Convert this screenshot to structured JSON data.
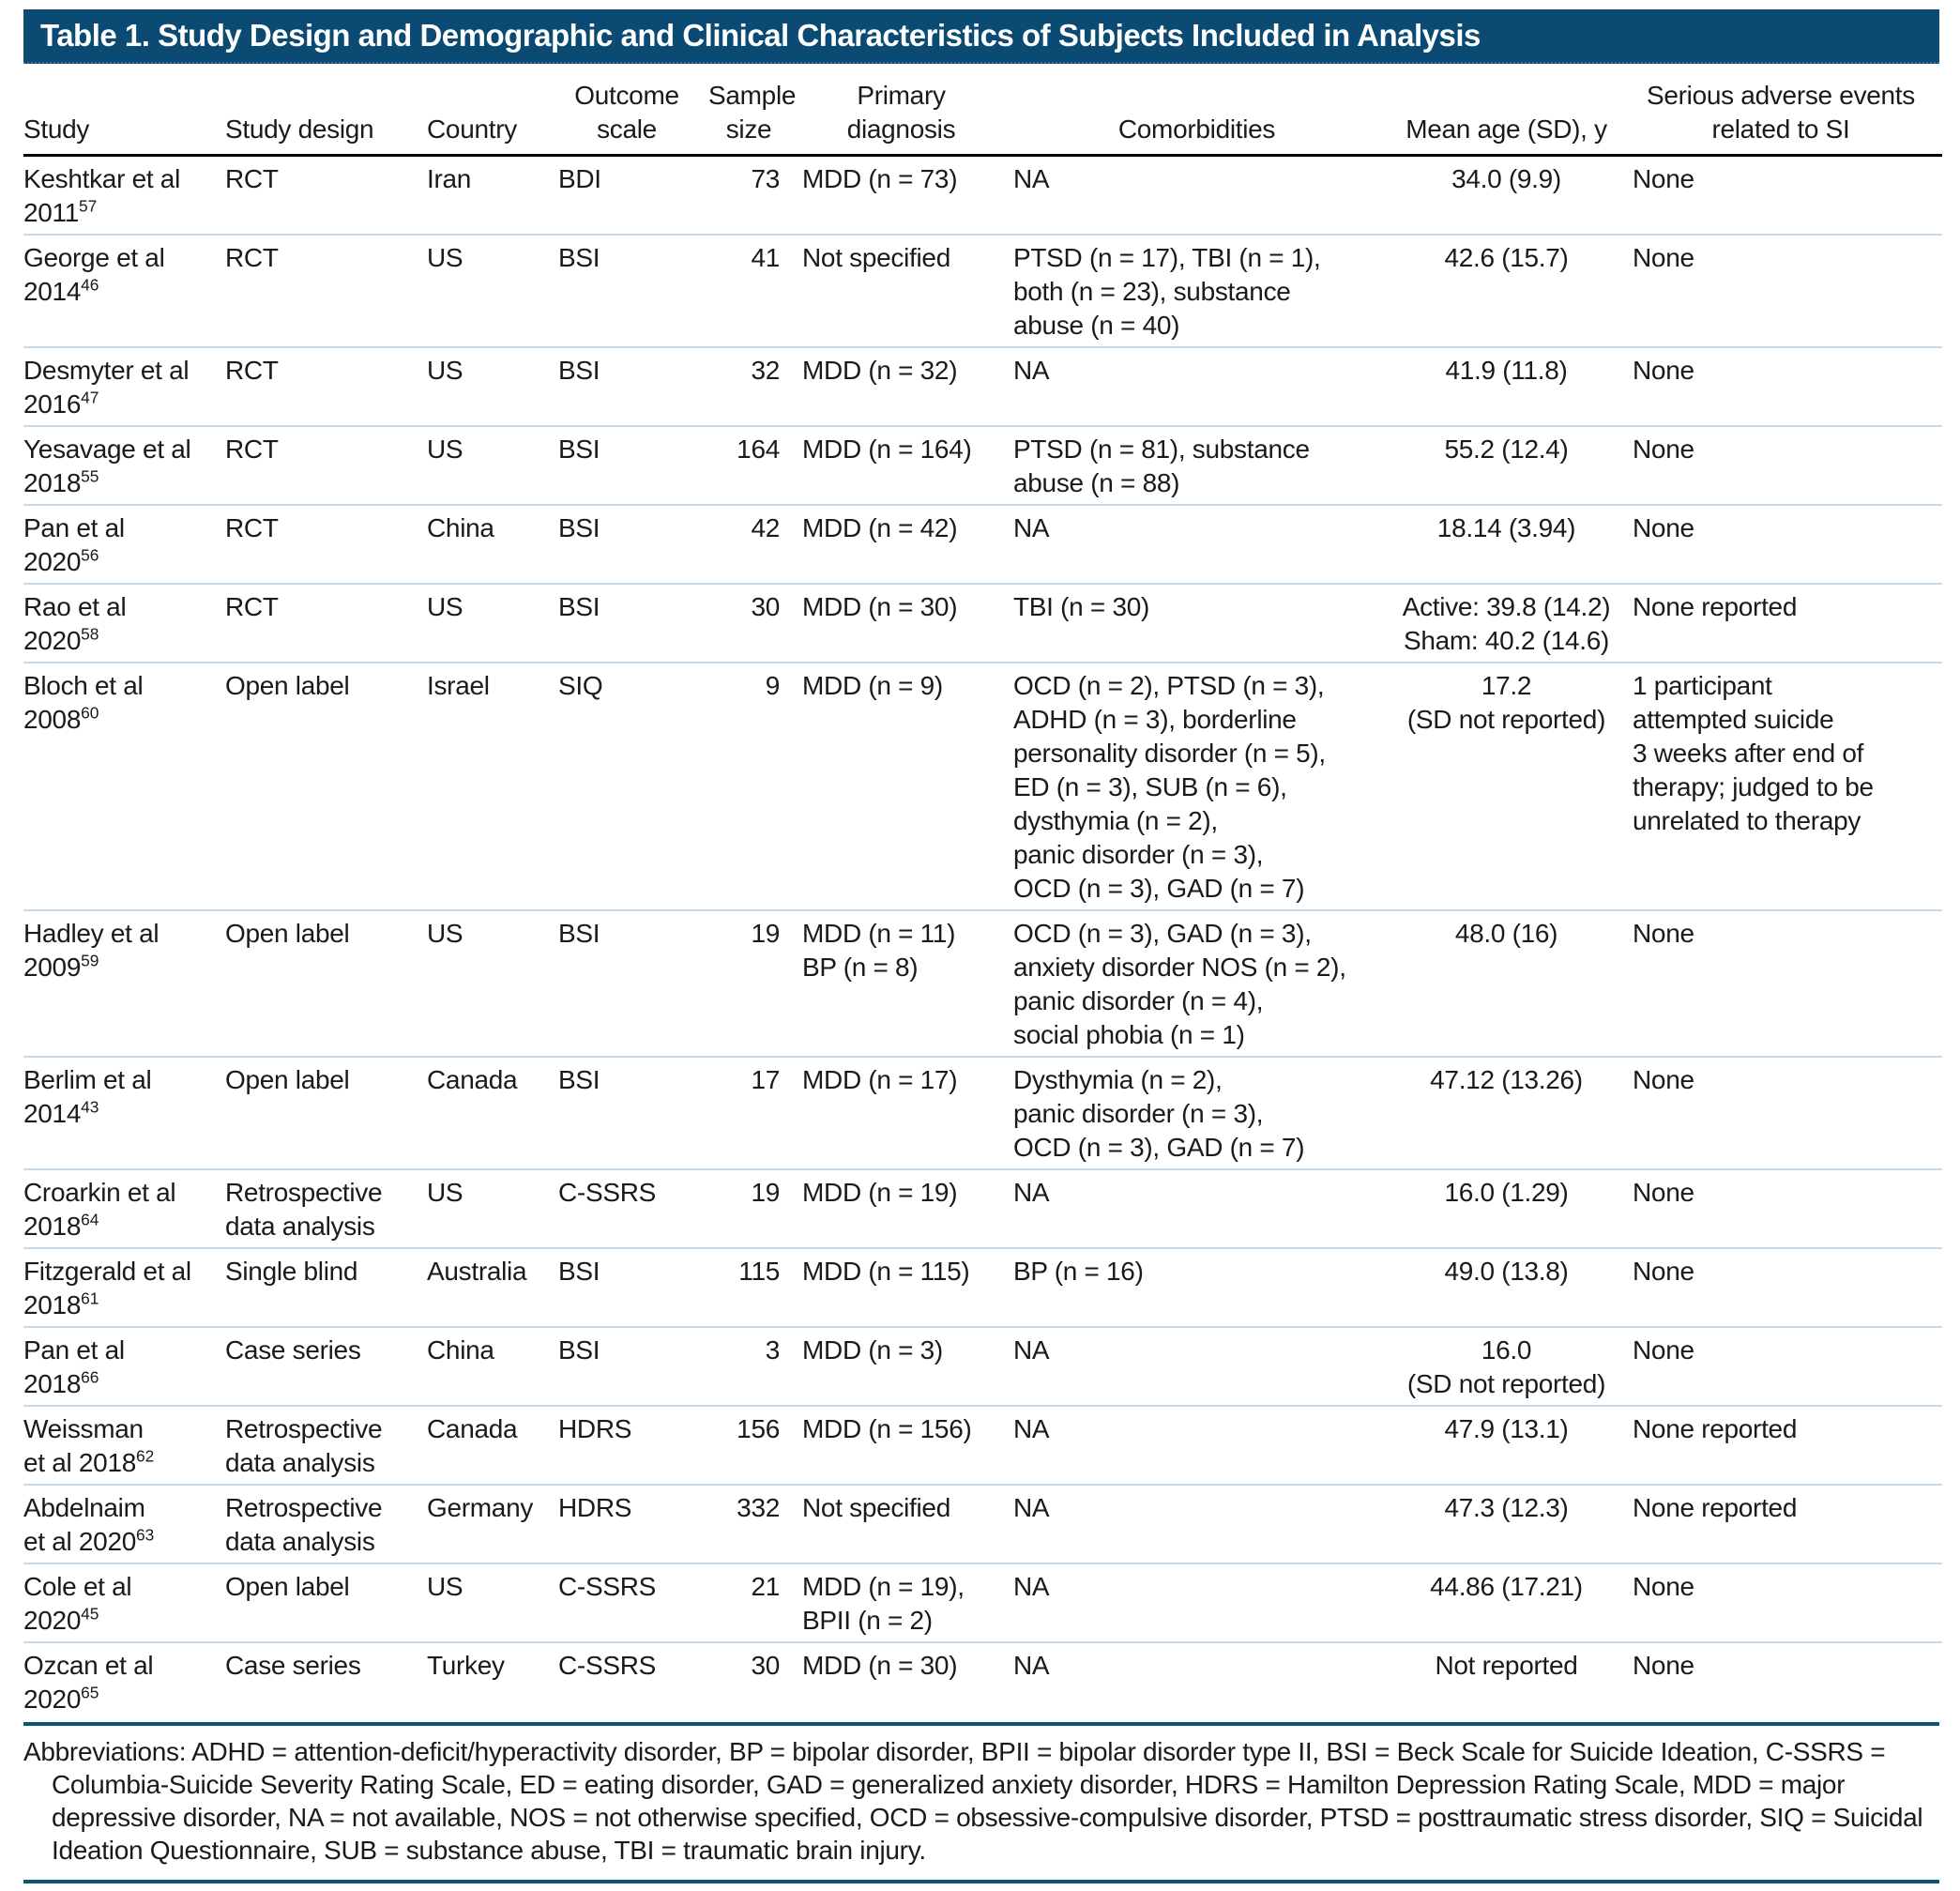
{
  "title": "Table 1. Study Design and Demographic and Clinical Characteristics of Subjects Included in Analysis",
  "colors": {
    "header_bar": "#0b4a72",
    "row_divider": "#c3dcef",
    "heavy_rule": "#0e5574",
    "header_rule": "#000000"
  },
  "columns": [
    "Study",
    "Study design",
    "Country",
    "Outcome scale",
    "Sample size",
    "Primary diagnosis",
    "Comorbidities",
    "Mean age (SD), y",
    "Serious adverse events related to SI"
  ],
  "rows": [
    {
      "study": "Keshtkar et al\n2011",
      "ref": "57",
      "design": "RCT",
      "country": "Iran",
      "scale": "BDI",
      "size": "73",
      "diagnosis": "MDD (n = 73)",
      "comorbidities": "NA",
      "mean_age": "34.0 (9.9)",
      "adverse_events": "None"
    },
    {
      "study": "George et al\n2014",
      "ref": "46",
      "design": "RCT",
      "country": "US",
      "scale": "BSI",
      "size": "41",
      "diagnosis": "Not specified",
      "comorbidities": "PTSD (n = 17), TBI (n = 1),\nboth (n = 23), substance\nabuse (n = 40)",
      "mean_age": "42.6 (15.7)",
      "adverse_events": "None"
    },
    {
      "study": "Desmyter et al\n2016",
      "ref": "47",
      "design": "RCT",
      "country": "US",
      "scale": "BSI",
      "size": "32",
      "diagnosis": "MDD (n = 32)",
      "comorbidities": "NA",
      "mean_age": "41.9 (11.8)",
      "adverse_events": "None"
    },
    {
      "study": "Yesavage et al\n2018",
      "ref": "55",
      "design": "RCT",
      "country": "US",
      "scale": "BSI",
      "size": "164",
      "diagnosis": "MDD (n = 164)",
      "comorbidities": "PTSD (n = 81), substance\nabuse (n = 88)",
      "mean_age": "55.2 (12.4)",
      "adverse_events": "None"
    },
    {
      "study": "Pan et al\n2020",
      "ref": "56",
      "design": "RCT",
      "country": "China",
      "scale": "BSI",
      "size": "42",
      "diagnosis": "MDD (n = 42)",
      "comorbidities": "NA",
      "mean_age": "18.14 (3.94)",
      "adverse_events": "None"
    },
    {
      "study": "Rao et al\n2020",
      "ref": "58",
      "design": "RCT",
      "country": "US",
      "scale": "BSI",
      "size": "30",
      "diagnosis": "MDD (n = 30)",
      "comorbidities": "TBI (n = 30)",
      "mean_age": "Active: 39.8 (14.2)\nSham: 40.2 (14.6)",
      "adverse_events": "None reported"
    },
    {
      "study": "Bloch et al\n2008",
      "ref": "60",
      "design": "Open label",
      "country": "Israel",
      "scale": "SIQ",
      "size": "9",
      "diagnosis": "MDD (n = 9)",
      "comorbidities": "OCD (n = 2), PTSD (n = 3),\nADHD (n = 3), borderline\npersonality disorder (n = 5),\nED (n = 3), SUB (n = 6),\ndysthymia (n = 2),\npanic disorder (n = 3),\nOCD (n = 3), GAD (n = 7)",
      "mean_age": "17.2\n(SD not reported)",
      "adverse_events": "1 participant\nattempted suicide\n3 weeks after end of\ntherapy; judged to be\nunrelated to therapy"
    },
    {
      "study": "Hadley et al\n2009",
      "ref": "59",
      "design": "Open label",
      "country": "US",
      "scale": "BSI",
      "size": "19",
      "diagnosis": "MDD (n = 11)\nBP (n = 8)",
      "comorbidities": "OCD (n = 3), GAD (n = 3),\nanxiety disorder NOS (n = 2),\npanic disorder (n = 4),\nsocial phobia (n = 1)",
      "mean_age": "48.0 (16)",
      "adverse_events": "None"
    },
    {
      "study": "Berlim et al\n2014",
      "ref": "43",
      "design": "Open label",
      "country": "Canada",
      "scale": "BSI",
      "size": "17",
      "diagnosis": "MDD (n = 17)",
      "comorbidities": "Dysthymia (n = 2),\npanic disorder (n = 3),\nOCD (n = 3), GAD (n = 7)",
      "mean_age": "47.12 (13.26)",
      "adverse_events": "None"
    },
    {
      "study": "Croarkin et al\n2018",
      "ref": "64",
      "design": "Retrospective\ndata analysis",
      "country": "US",
      "scale": "C-SSRS",
      "size": "19",
      "diagnosis": "MDD (n = 19)",
      "comorbidities": "NA",
      "mean_age": "16.0 (1.29)",
      "adverse_events": "None"
    },
    {
      "study": "Fitzgerald et al\n2018",
      "ref": "61",
      "design": "Single blind",
      "country": "Australia",
      "scale": "BSI",
      "size": "115",
      "diagnosis": "MDD (n = 115)",
      "comorbidities": "BP (n = 16)",
      "mean_age": "49.0 (13.8)",
      "adverse_events": "None"
    },
    {
      "study": "Pan et al\n2018",
      "ref": "66",
      "design": "Case series",
      "country": "China",
      "scale": "BSI",
      "size": "3",
      "diagnosis": "MDD (n = 3)",
      "comorbidities": "NA",
      "mean_age": "16.0\n(SD not reported)",
      "adverse_events": "None"
    },
    {
      "study": "Weissman\net al 2018",
      "ref": "62",
      "design": "Retrospective\ndata analysis",
      "country": "Canada",
      "scale": "HDRS",
      "size": "156",
      "diagnosis": "MDD (n = 156)",
      "comorbidities": "NA",
      "mean_age": "47.9 (13.1)",
      "adverse_events": "None reported"
    },
    {
      "study": "Abdelnaim\net al 2020",
      "ref": "63",
      "design": "Retrospective\ndata analysis",
      "country": "Germany",
      "scale": "HDRS",
      "size": "332",
      "diagnosis": "Not specified",
      "comorbidities": "NA",
      "mean_age": "47.3 (12.3)",
      "adverse_events": "None reported"
    },
    {
      "study": "Cole et al\n2020",
      "ref": "45",
      "design": "Open label",
      "country": "US",
      "scale": "C-SSRS",
      "size": "21",
      "diagnosis": "MDD (n = 19),\nBPII (n = 2)",
      "comorbidities": "NA",
      "mean_age": "44.86 (17.21)",
      "adverse_events": "None"
    },
    {
      "study": "Ozcan et al\n2020",
      "ref": "65",
      "design": "Case series",
      "country": "Turkey",
      "scale": "C-SSRS",
      "size": "30",
      "diagnosis": "MDD (n = 30)",
      "comorbidities": "NA",
      "mean_age": "Not reported",
      "adverse_events": "None"
    }
  ],
  "footnote": "Abbreviations: ADHD = attention-deficit/hyperactivity disorder, BP = bipolar disorder, BPII = bipolar disorder type II, BSI = Beck Scale for Suicide Ideation, C-SSRS = Columbia-Suicide Severity Rating Scale, ED = eating disorder, GAD = generalized anxiety disorder, HDRS = Hamilton Depression Rating Scale, MDD = major depressive disorder, NA = not available, NOS = not otherwise specified, OCD = obsessive-compulsive disorder, PTSD = posttraumatic stress disorder, SIQ = Suicidal Ideation Questionnaire, SUB = substance abuse, TBI = traumatic brain injury."
}
